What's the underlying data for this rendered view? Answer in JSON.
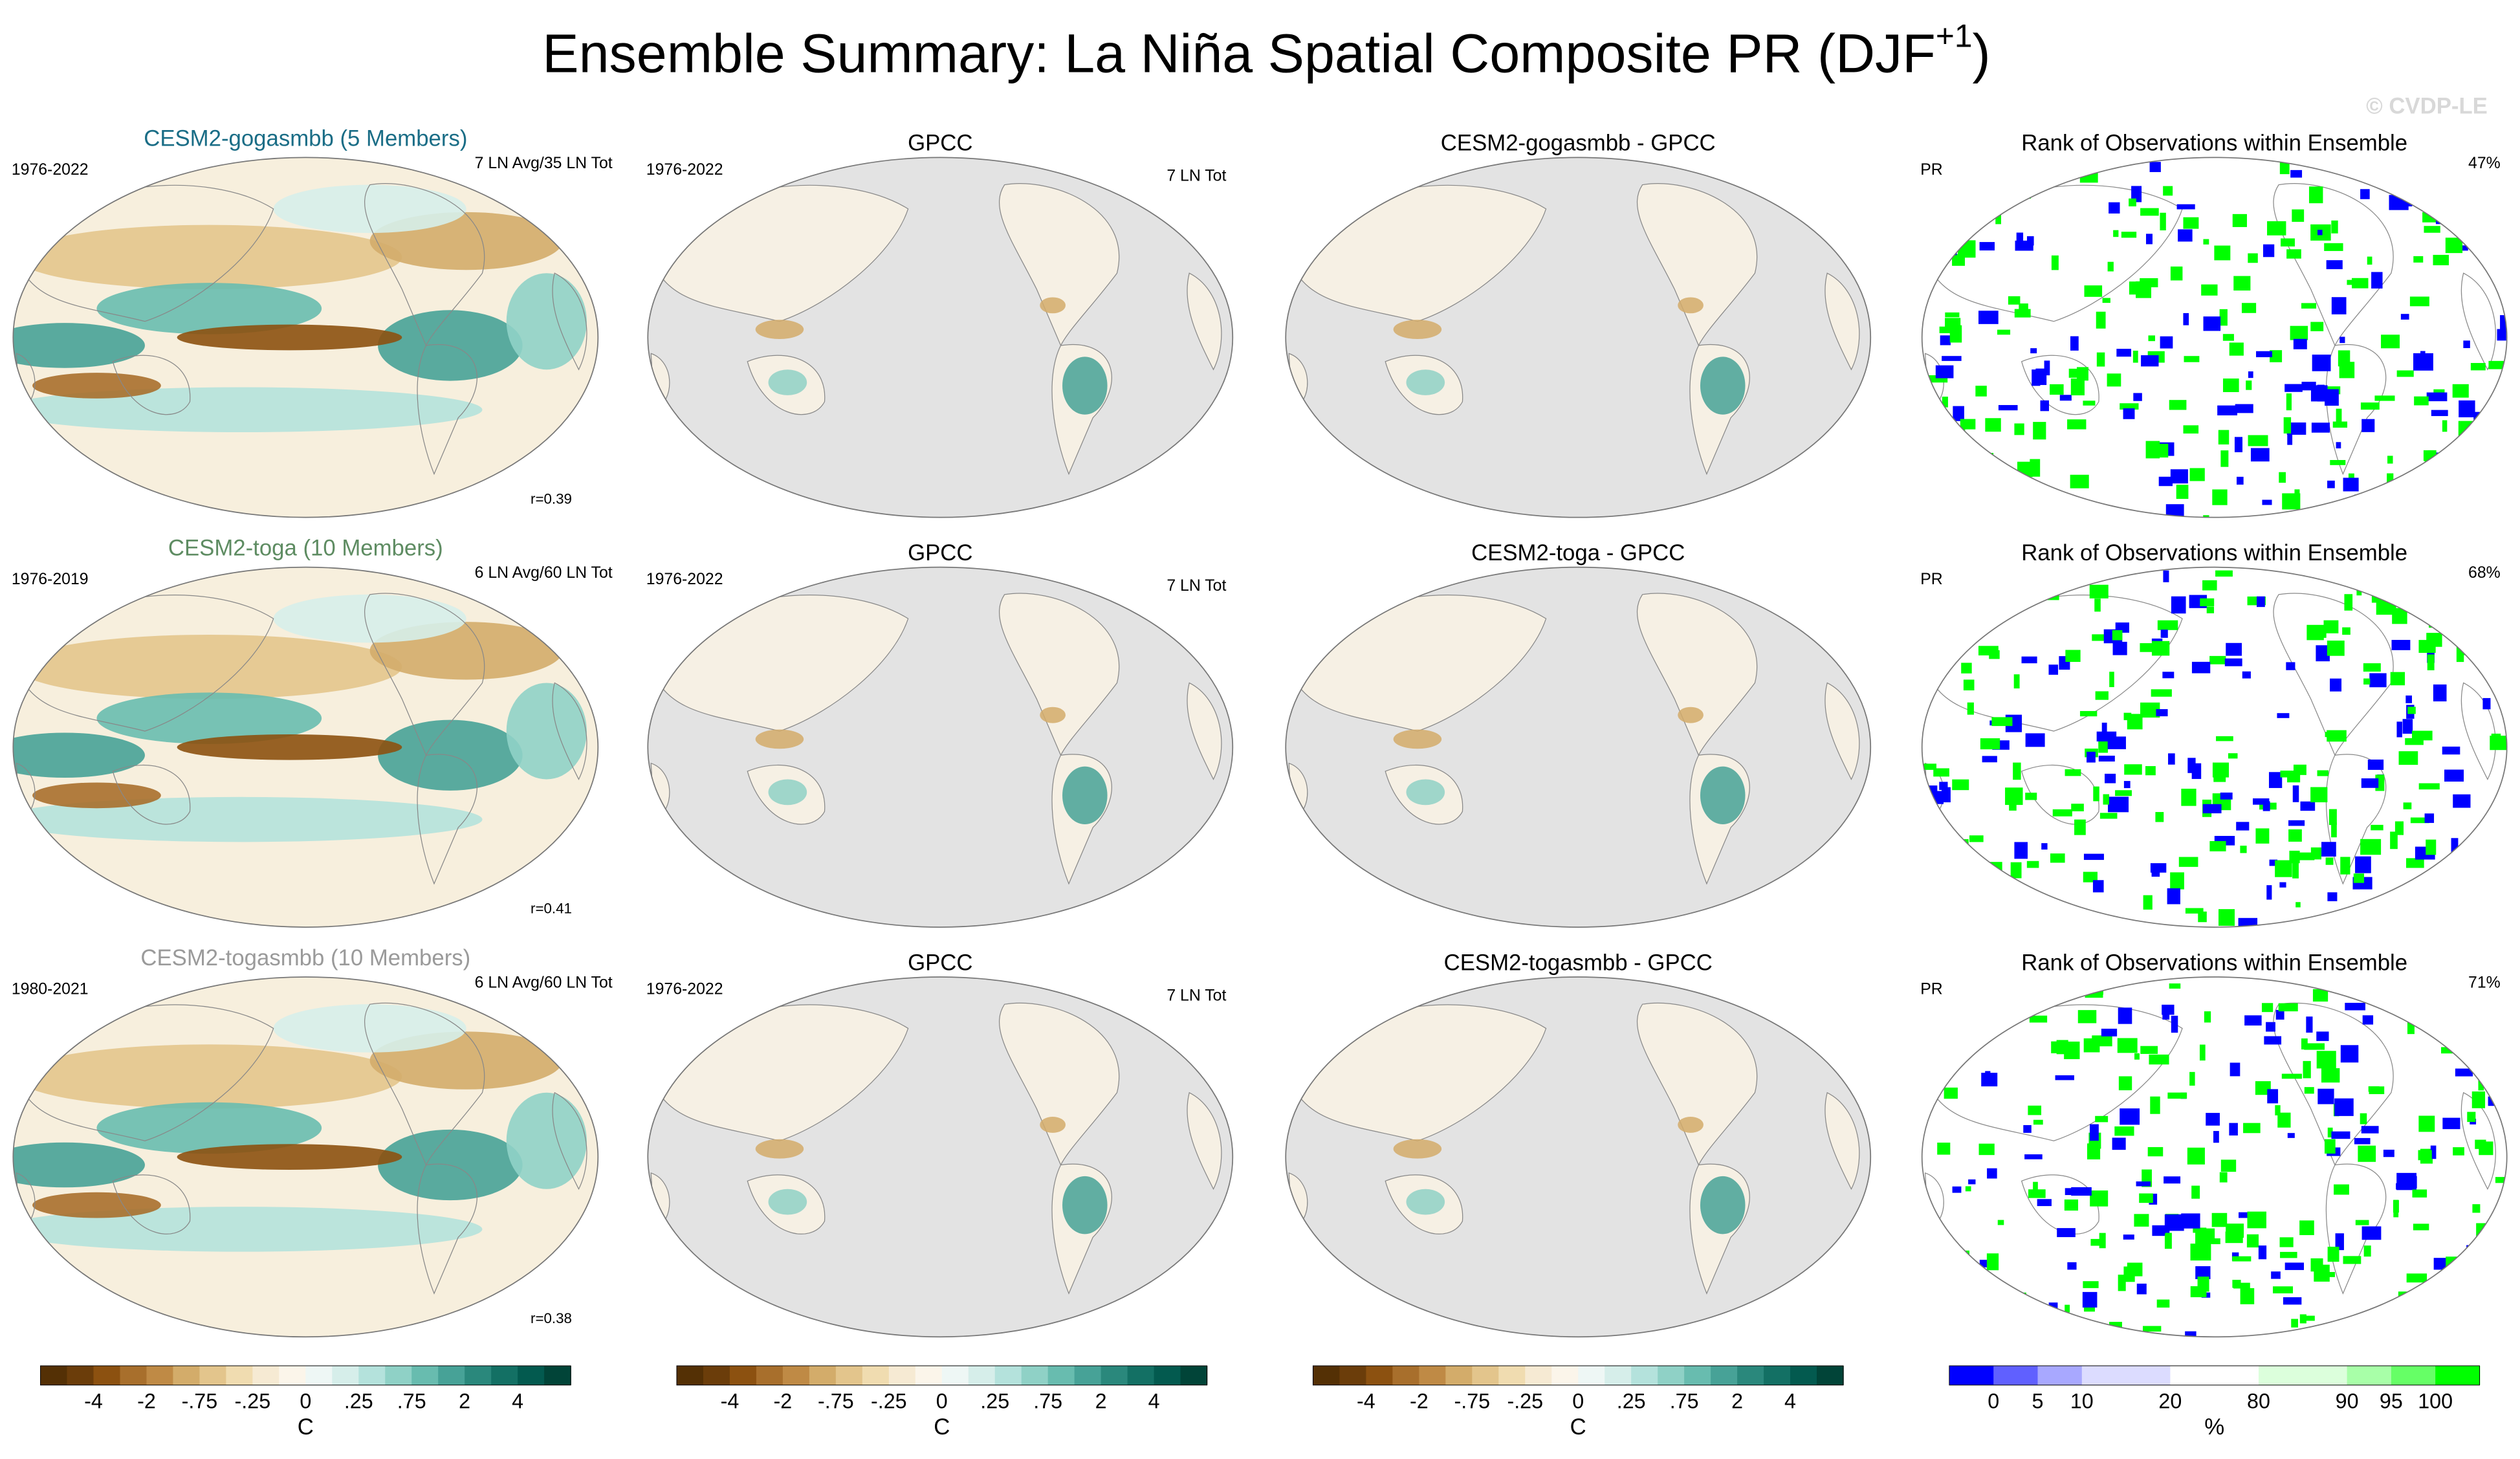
{
  "title": {
    "main": "Ensemble Summary: La Niña Spatial Composite PR (DJF",
    "sup": "+1",
    "end": ")"
  },
  "watermark": "© CVDP-LE",
  "rows": [
    {
      "panels": [
        {
          "kind": "model",
          "title": "CESM2-gogasmbb (5 Members)",
          "title_color": "#1a6d86",
          "left": "1976-2022",
          "right": "7 LN Avg/35 LN Tot",
          "footer": "r=0.39"
        },
        {
          "kind": "obs",
          "title": "GPCC",
          "left": "1976-2022",
          "right": "7 LN Tot"
        },
        {
          "kind": "diff",
          "title": "CESM2-gogasmbb - GPCC"
        },
        {
          "kind": "rank",
          "title": "Rank of Observations within Ensemble",
          "left": "PR",
          "right": "47%"
        }
      ]
    },
    {
      "panels": [
        {
          "kind": "model",
          "title": "CESM2-toga (10 Members)",
          "title_color": "#5e8c62",
          "left": "1976-2019",
          "right": "6 LN Avg/60 LN Tot",
          "footer": "r=0.41"
        },
        {
          "kind": "obs",
          "title": "GPCC",
          "left": "1976-2022",
          "right": "7 LN Tot"
        },
        {
          "kind": "diff",
          "title": "CESM2-toga - GPCC"
        },
        {
          "kind": "rank",
          "title": "Rank of Observations within Ensemble",
          "left": "PR",
          "right": "68%"
        }
      ]
    },
    {
      "panels": [
        {
          "kind": "model",
          "title": "CESM2-togasmbb (10 Members)",
          "title_color": "#9a9a9a",
          "left": "1980-2021",
          "right": "6 LN Avg/60 LN Tot",
          "footer": "r=0.38"
        },
        {
          "kind": "obs",
          "title": "GPCC",
          "left": "1976-2022",
          "right": "7 LN Tot"
        },
        {
          "kind": "diff",
          "title": "CESM2-togasmbb - GPCC"
        },
        {
          "kind": "rank",
          "title": "Rank of Observations within Ensemble",
          "left": "PR",
          "right": "71%"
        }
      ]
    }
  ],
  "colorbars": [
    {
      "colors": [
        "#543005",
        "#6b3d0a",
        "#8c5110",
        "#a86f2c",
        "#bf8a45",
        "#d3ac6a",
        "#e3c58c",
        "#f0dcb0",
        "#f6ead3",
        "#fbf5ea",
        "#eef7f5",
        "#d6eeea",
        "#b4e2dc",
        "#8fd1c6",
        "#68bcaf",
        "#47a297",
        "#2a887c",
        "#137064",
        "#035a4f",
        "#014438"
      ],
      "labels": [
        null,
        null,
        "-4",
        null,
        "-2",
        null,
        "-.75",
        null,
        "-.25",
        null,
        "0",
        null,
        ".25",
        null,
        ".75",
        null,
        "2",
        null,
        "4",
        null,
        null
      ],
      "units": "C"
    },
    {
      "colors": [
        "#543005",
        "#6b3d0a",
        "#8c5110",
        "#a86f2c",
        "#bf8a45",
        "#d3ac6a",
        "#e3c58c",
        "#f0dcb0",
        "#f6ead3",
        "#fbf5ea",
        "#eef7f5",
        "#d6eeea",
        "#b4e2dc",
        "#8fd1c6",
        "#68bcaf",
        "#47a297",
        "#2a887c",
        "#137064",
        "#035a4f",
        "#014438"
      ],
      "labels": [
        null,
        null,
        "-4",
        null,
        "-2",
        null,
        "-.75",
        null,
        "-.25",
        null,
        "0",
        null,
        ".25",
        null,
        ".75",
        null,
        "2",
        null,
        "4",
        null,
        null
      ],
      "units": "C"
    },
    {
      "colors": [
        "#543005",
        "#6b3d0a",
        "#8c5110",
        "#a86f2c",
        "#bf8a45",
        "#d3ac6a",
        "#e3c58c",
        "#f0dcb0",
        "#f6ead3",
        "#fbf5ea",
        "#eef7f5",
        "#d6eeea",
        "#b4e2dc",
        "#8fd1c6",
        "#68bcaf",
        "#47a297",
        "#2a887c",
        "#137064",
        "#035a4f",
        "#014438"
      ],
      "labels": [
        null,
        null,
        "-4",
        null,
        "-2",
        null,
        "-.75",
        null,
        "-.25",
        null,
        "0",
        null,
        ".25",
        null,
        ".75",
        null,
        "2",
        null,
        "4",
        null,
        null
      ],
      "units": "C"
    },
    {
      "colors": [
        "#0000ff",
        "#6060ff",
        "#a8a8ff",
        "#dcdcff",
        "#dcdcff",
        "#ffffff",
        "#ffffff",
        "#dcffdc",
        "#dcffdc",
        "#a8ffa8",
        "#66ff66",
        "#00ff00"
      ],
      "labels": [
        null,
        "0",
        "5",
        "10",
        null,
        "20",
        null,
        "80",
        null,
        "90",
        "95",
        "100",
        null
      ],
      "units": "%"
    }
  ]
}
